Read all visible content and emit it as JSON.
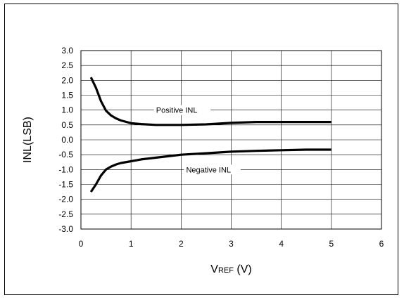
{
  "chart_data": {
    "type": "line",
    "title": "",
    "xlabel": "V",
    "xlabel_sub": "REF",
    "xlabel_unit": " (V)",
    "ylabel": "INL(LSB)",
    "xlim": [
      0,
      6
    ],
    "ylim": [
      -3.0,
      3.0
    ],
    "x_ticks": [
      0,
      1,
      2,
      3,
      4,
      5,
      6
    ],
    "x_tick_labels": [
      "0",
      "1",
      "2",
      "3",
      "4",
      "5",
      "6"
    ],
    "y_ticks": [
      3.0,
      2.5,
      2.0,
      1.5,
      1.0,
      0.5,
      0.0,
      -0.5,
      -1.0,
      -1.5,
      -2.0,
      -2.5,
      -3.0
    ],
    "y_tick_labels": [
      "3.0",
      "2.5",
      "2.0",
      "1.5",
      "1.0",
      "0.5",
      "0.0",
      "-0.5",
      "-1.0",
      "-1.5",
      "-2.0",
      "-2.5",
      "-3.0"
    ],
    "grid": true,
    "series": [
      {
        "name": "Positive INL",
        "x": [
          0.2,
          0.3,
          0.4,
          0.5,
          0.6,
          0.7,
          0.8,
          1.0,
          1.2,
          1.5,
          2.0,
          2.5,
          3.0,
          3.5,
          4.0,
          4.5,
          5.0
        ],
        "y": [
          2.1,
          1.75,
          1.3,
          0.98,
          0.82,
          0.72,
          0.65,
          0.56,
          0.53,
          0.5,
          0.5,
          0.52,
          0.57,
          0.6,
          0.6,
          0.6,
          0.6
        ]
      },
      {
        "name": "Negative INL",
        "x": [
          0.2,
          0.3,
          0.4,
          0.5,
          0.6,
          0.7,
          0.8,
          1.0,
          1.2,
          1.5,
          2.0,
          2.5,
          3.0,
          3.5,
          4.0,
          4.5,
          5.0
        ],
        "y": [
          -1.75,
          -1.5,
          -1.2,
          -1.0,
          -0.9,
          -0.83,
          -0.78,
          -0.72,
          -0.66,
          -0.6,
          -0.5,
          -0.45,
          -0.4,
          -0.37,
          -0.35,
          -0.33,
          -0.33
        ]
      }
    ],
    "annotations": [
      {
        "text": "Positive INL",
        "x": 1.5,
        "y": 1.0
      },
      {
        "text": "Negative INL",
        "x": 2.1,
        "y": -1.0
      }
    ],
    "line_color": "#000000"
  }
}
